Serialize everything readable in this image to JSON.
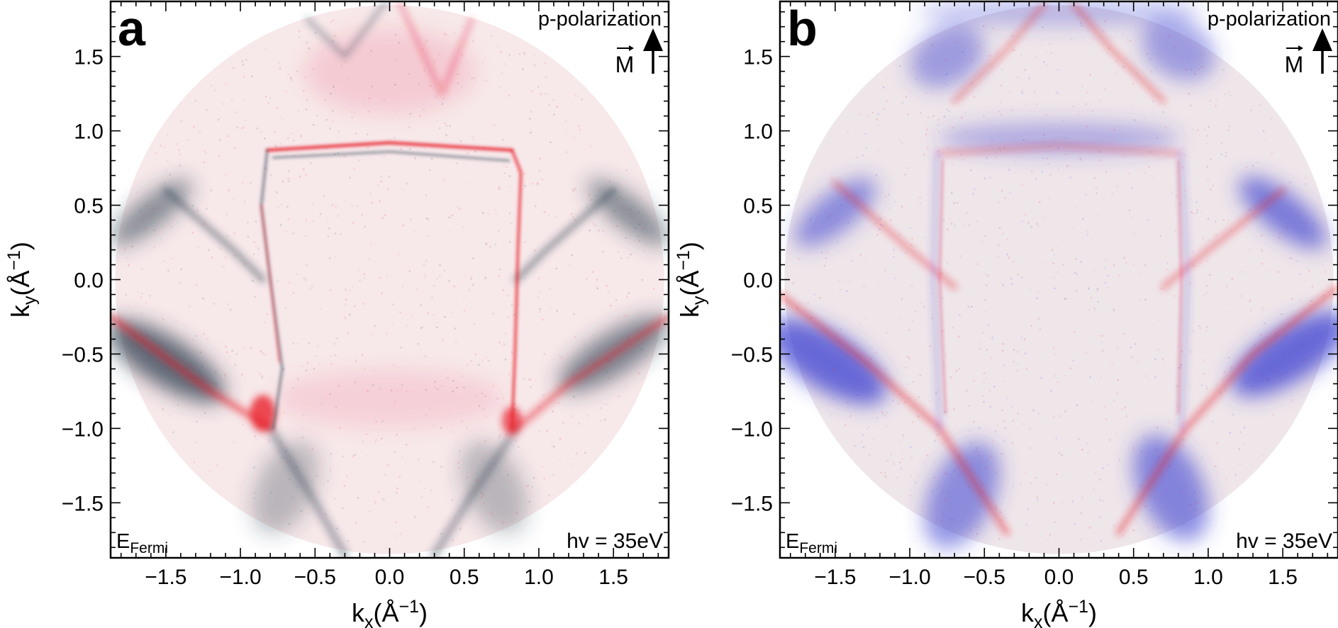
{
  "chart_data": [
    {
      "type": "heatmap",
      "panel_label": "a",
      "xlabel": "k",
      "xlabel_sub": "x",
      "ylabel": "k",
      "ylabel_sub": "y",
      "axis_unit": "(Å",
      "axis_unit_sup": "−1",
      "axis_unit_close": ")",
      "xlim": [
        -1.87,
        1.87
      ],
      "ylim": [
        -1.87,
        1.87
      ],
      "xticks": [
        -1.5,
        -1.0,
        -0.5,
        0.0,
        0.5,
        1.0,
        1.5
      ],
      "yticks": [
        -1.5,
        -1.0,
        -0.5,
        0.0,
        0.5,
        1.0,
        1.5
      ],
      "xtick_labels": [
        "−1.5",
        "−1.0",
        "−0.5",
        "0.0",
        "0.5",
        "1.0",
        "1.5"
      ],
      "ytick_labels": [
        "−1.5",
        "−1.0",
        "−0.5",
        "0.0",
        "0.5",
        "1.0",
        "1.5"
      ],
      "polarization": "p-polarization",
      "vector_label": "M",
      "energy_label": "E",
      "energy_sub": "Fermi",
      "photon_energy": "hv = 35eV",
      "colors": {
        "positive": "#e8202a",
        "negative": "#2c3e50",
        "background": "#f7e8ea"
      }
    },
    {
      "type": "heatmap",
      "panel_label": "b",
      "xlabel": "k",
      "xlabel_sub": "x",
      "ylabel": "k",
      "ylabel_sub": "y",
      "axis_unit": "(Å",
      "axis_unit_sup": "−1",
      "axis_unit_close": ")",
      "xlim": [
        -1.87,
        1.87
      ],
      "ylim": [
        -1.87,
        1.87
      ],
      "xticks": [
        -1.5,
        -1.0,
        -0.5,
        0.0,
        0.5,
        1.0,
        1.5
      ],
      "yticks": [
        -1.5,
        -1.0,
        -0.5,
        0.0,
        0.5,
        1.0,
        1.5
      ],
      "xtick_labels": [
        "−1.5",
        "−1.0",
        "−0.5",
        "0.0",
        "0.5",
        "1.0",
        "1.5"
      ],
      "ytick_labels": [
        "−1.5",
        "−1.0",
        "−0.5",
        "0.0",
        "0.5",
        "1.0",
        "1.5"
      ],
      "polarization": "p-polarization",
      "vector_label": "M",
      "energy_label": "E",
      "energy_sub": "Fermi",
      "photon_energy": "hv = 35eV",
      "colors": {
        "positive": "#e8202a",
        "negative": "#3a3fd0",
        "background": "#efe6ea"
      }
    }
  ]
}
